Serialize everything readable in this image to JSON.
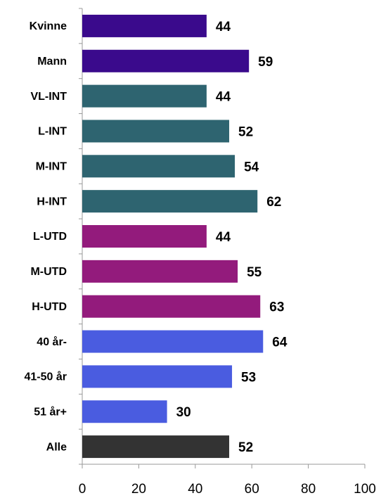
{
  "chart_data": {
    "type": "barh",
    "categories": [
      "Kvinne",
      "Mann",
      "VL-INT",
      "L-INT",
      "M-INT",
      "H-INT",
      "L-UTD",
      "M-UTD",
      "H-UTD",
      "40 år-",
      "41-50 år",
      "51 år+",
      "Alle"
    ],
    "values": [
      44,
      59,
      44,
      52,
      54,
      62,
      44,
      55,
      63,
      64,
      53,
      30,
      52
    ],
    "colors": [
      "#3a0a8c",
      "#3a0a8c",
      "#2e6470",
      "#2e6470",
      "#2e6470",
      "#2e6470",
      "#931b7c",
      "#931b7c",
      "#931b7c",
      "#4a5ce0",
      "#4a5ce0",
      "#4a5ce0",
      "#333333"
    ],
    "xlim": [
      0,
      100
    ],
    "xticks": [
      0,
      20,
      40,
      60,
      80,
      100
    ],
    "grid": false
  }
}
